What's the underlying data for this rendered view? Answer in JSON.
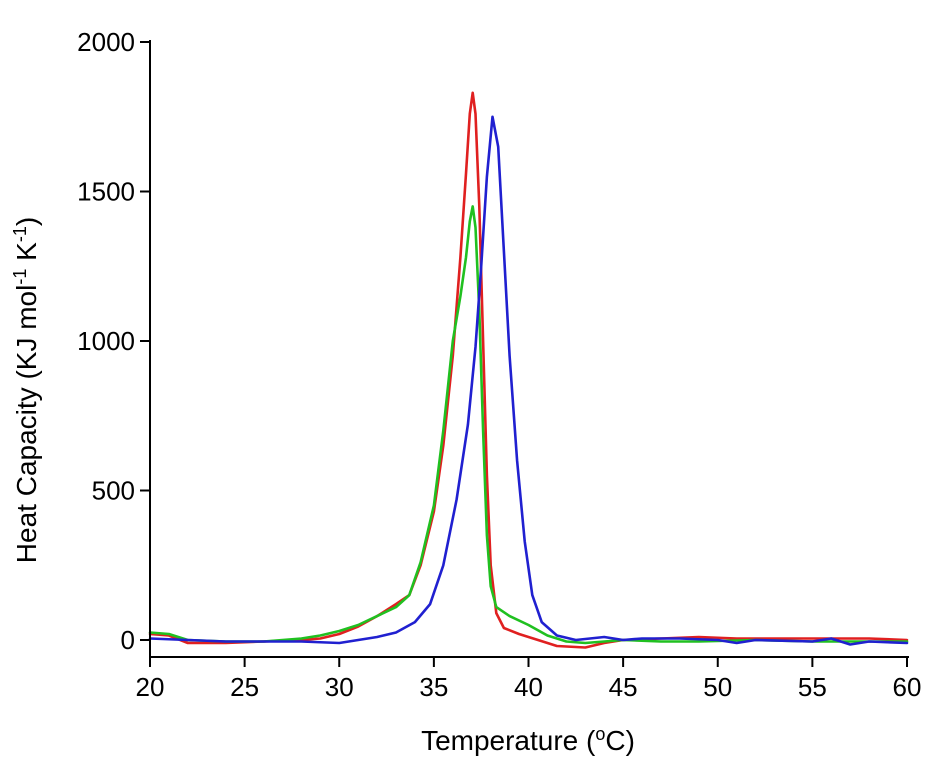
{
  "chart_data": {
    "type": "line",
    "xlabel": "Temperature (",
    "xlabel_sup": "o",
    "xlabel_tail": "C)",
    "ylabel_part1": "Heat Capacity (KJ mol",
    "ylabel_sup1": "-1",
    "ylabel_part2": " K",
    "ylabel_sup2": "-1",
    "ylabel_part3": ")",
    "xlim": [
      20,
      60
    ],
    "ylim": [
      0,
      2000
    ],
    "x_ticks": [
      20,
      25,
      30,
      35,
      40,
      45,
      50,
      55,
      60
    ],
    "x_tick_labels": [
      "20",
      "25",
      "30",
      "35",
      "40",
      "45",
      "50",
      "55",
      "60"
    ],
    "y_ticks": [
      0,
      500,
      1000,
      1500,
      2000
    ],
    "y_tick_labels": [
      "0",
      "500",
      "1000",
      "1500",
      "2000"
    ],
    "grid": false,
    "series": [
      {
        "color": "#e02020",
        "points": [
          [
            20,
            20
          ],
          [
            21,
            15
          ],
          [
            22,
            -10
          ],
          [
            24,
            -10
          ],
          [
            26,
            -5
          ],
          [
            28,
            0
          ],
          [
            29,
            5
          ],
          [
            30,
            20
          ],
          [
            31,
            45
          ],
          [
            32,
            80
          ],
          [
            33,
            120
          ],
          [
            33.7,
            150
          ],
          [
            34.3,
            250
          ],
          [
            35,
            430
          ],
          [
            35.5,
            650
          ],
          [
            36,
            950
          ],
          [
            36.4,
            1280
          ],
          [
            36.7,
            1560
          ],
          [
            36.9,
            1760
          ],
          [
            37.05,
            1830
          ],
          [
            37.2,
            1760
          ],
          [
            37.4,
            1450
          ],
          [
            37.6,
            1000
          ],
          [
            37.8,
            550
          ],
          [
            38,
            250
          ],
          [
            38.3,
            90
          ],
          [
            38.7,
            40
          ],
          [
            39.5,
            20
          ],
          [
            40.5,
            0
          ],
          [
            41.5,
            -20
          ],
          [
            43,
            -25
          ],
          [
            44,
            -10
          ],
          [
            45,
            0
          ],
          [
            47,
            5
          ],
          [
            49,
            10
          ],
          [
            51,
            5
          ],
          [
            55,
            5
          ],
          [
            58,
            5
          ],
          [
            60,
            0
          ]
        ]
      },
      {
        "color": "#20c020",
        "points": [
          [
            20,
            25
          ],
          [
            21,
            20
          ],
          [
            22,
            0
          ],
          [
            24,
            -5
          ],
          [
            26,
            -5
          ],
          [
            28,
            5
          ],
          [
            29,
            15
          ],
          [
            30,
            30
          ],
          [
            31,
            50
          ],
          [
            32,
            80
          ],
          [
            33,
            110
          ],
          [
            33.7,
            150
          ],
          [
            34.3,
            260
          ],
          [
            35,
            450
          ],
          [
            35.5,
            700
          ],
          [
            36,
            1000
          ],
          [
            36.4,
            1150
          ],
          [
            36.7,
            1280
          ],
          [
            36.9,
            1400
          ],
          [
            37.05,
            1450
          ],
          [
            37.2,
            1380
          ],
          [
            37.4,
            1100
          ],
          [
            37.6,
            700
          ],
          [
            37.8,
            350
          ],
          [
            38,
            180
          ],
          [
            38.3,
            110
          ],
          [
            39,
            80
          ],
          [
            40,
            50
          ],
          [
            41,
            15
          ],
          [
            42,
            -5
          ],
          [
            43,
            -10
          ],
          [
            45,
            0
          ],
          [
            47,
            -5
          ],
          [
            49,
            -5
          ],
          [
            52,
            0
          ],
          [
            55,
            -5
          ],
          [
            58,
            -5
          ],
          [
            60,
            -5
          ]
        ]
      },
      {
        "color": "#2020d0",
        "points": [
          [
            20,
            5
          ],
          [
            22,
            0
          ],
          [
            24,
            -5
          ],
          [
            26,
            -5
          ],
          [
            28,
            -5
          ],
          [
            30,
            -10
          ],
          [
            31,
            0
          ],
          [
            32,
            10
          ],
          [
            33,
            25
          ],
          [
            34,
            60
          ],
          [
            34.8,
            120
          ],
          [
            35.5,
            250
          ],
          [
            36.2,
            470
          ],
          [
            36.8,
            720
          ],
          [
            37.2,
            980
          ],
          [
            37.5,
            1250
          ],
          [
            37.8,
            1550
          ],
          [
            38.1,
            1750
          ],
          [
            38.4,
            1650
          ],
          [
            38.7,
            1300
          ],
          [
            39,
            950
          ],
          [
            39.4,
            600
          ],
          [
            39.8,
            330
          ],
          [
            40.2,
            150
          ],
          [
            40.7,
            60
          ],
          [
            41.5,
            15
          ],
          [
            42.5,
            0
          ],
          [
            44,
            10
          ],
          [
            45,
            0
          ],
          [
            46,
            5
          ],
          [
            48,
            5
          ],
          [
            50,
            0
          ],
          [
            51,
            -10
          ],
          [
            52,
            0
          ],
          [
            55,
            -5
          ],
          [
            56,
            5
          ],
          [
            57,
            -15
          ],
          [
            58,
            -5
          ],
          [
            60,
            -10
          ]
        ]
      }
    ]
  }
}
